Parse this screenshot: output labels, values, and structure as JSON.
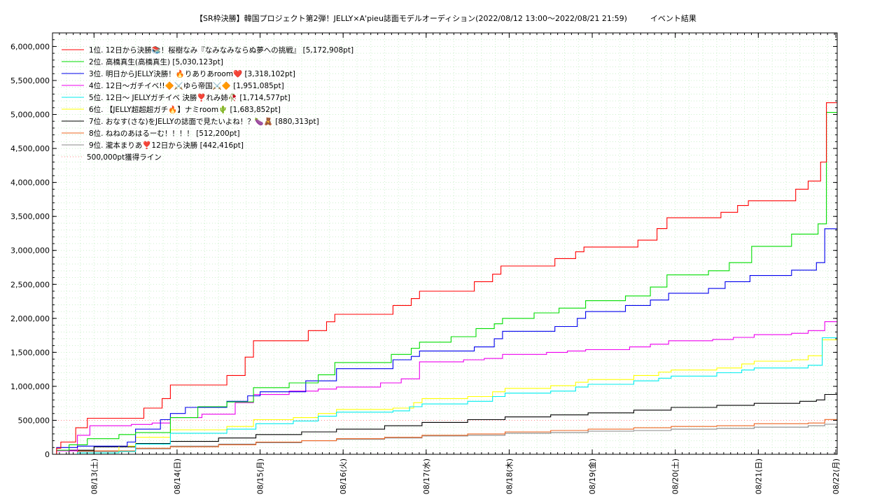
{
  "chart_data": {
    "type": "line",
    "title": "【SR枠決勝】韓国プロジェクト第2弾！JELLY×A'pieu誌面モデルオーディション(2022/08/12 13:00～2022/08/21 21:59)　　　イベント結果",
    "xlabel": "",
    "ylabel": "",
    "xlim": [
      0,
      9.45
    ],
    "ylim": [
      0,
      6200000
    ],
    "grid": true,
    "legend_position": "top-left",
    "x_ticks": [
      {
        "x": 0.5,
        "label": "08/13(土)"
      },
      {
        "x": 1.5,
        "label": "08/14(日)"
      },
      {
        "x": 2.5,
        "label": "08/15(月)"
      },
      {
        "x": 3.5,
        "label": "08/16(火)"
      },
      {
        "x": 4.5,
        "label": "08/17(水)"
      },
      {
        "x": 5.5,
        "label": "08/18(木)"
      },
      {
        "x": 6.5,
        "label": "08/19(金)"
      },
      {
        "x": 7.5,
        "label": "08/20(土)"
      },
      {
        "x": 8.5,
        "label": "08/21(日)"
      },
      {
        "x": 9.5,
        "label": "08/22(月)"
      }
    ],
    "y_ticks": [
      0,
      500000,
      1000000,
      1500000,
      2000000,
      2500000,
      3000000,
      3500000,
      4000000,
      4500000,
      5000000,
      5500000,
      6000000
    ],
    "y_tick_labels": [
      "0",
      "500,000",
      "1,000,000",
      "1,500,000",
      "2,000,000",
      "2,500,000",
      "3,000,000",
      "3,500,000",
      "4,000,000",
      "4,500,000",
      "5,000,000",
      "5,500,000",
      "6,000,000"
    ],
    "series": [
      {
        "name": "1位. 12日から決勝📚！桜樹なみ『なみなみならぬ夢への挑戦』 [5,172,908pt]",
        "color": "#ff0000",
        "points": [
          [
            0,
            0
          ],
          [
            0.05,
            90000
          ],
          [
            0.1,
            180000
          ],
          [
            0.28,
            390000
          ],
          [
            0.42,
            530000
          ],
          [
            1.1,
            680000
          ],
          [
            1.32,
            820000
          ],
          [
            1.42,
            1020000
          ],
          [
            2.1,
            1160000
          ],
          [
            2.32,
            1430000
          ],
          [
            2.42,
            1670000
          ],
          [
            3.08,
            1820000
          ],
          [
            3.3,
            1950000
          ],
          [
            3.4,
            2060000
          ],
          [
            4.1,
            2190000
          ],
          [
            4.32,
            2290000
          ],
          [
            4.42,
            2400000
          ],
          [
            5.08,
            2540000
          ],
          [
            5.3,
            2650000
          ],
          [
            5.4,
            2770000
          ],
          [
            6.05,
            2880000
          ],
          [
            6.3,
            2980000
          ],
          [
            6.4,
            3050000
          ],
          [
            7.05,
            3150000
          ],
          [
            7.28,
            3320000
          ],
          [
            7.4,
            3480000
          ],
          [
            8.05,
            3560000
          ],
          [
            8.25,
            3660000
          ],
          [
            8.38,
            3730000
          ],
          [
            8.95,
            3900000
          ],
          [
            9.1,
            4020000
          ],
          [
            9.25,
            4300000
          ],
          [
            9.32,
            5172908
          ],
          [
            9.45,
            5172908
          ]
        ]
      },
      {
        "name": "2位. 高橋真生(高橋真生) [5,030,123pt]",
        "color": "#00dd00",
        "points": [
          [
            0,
            0
          ],
          [
            0.05,
            60000
          ],
          [
            0.2,
            140000
          ],
          [
            0.42,
            230000
          ],
          [
            0.8,
            290000
          ],
          [
            1.0,
            320000
          ],
          [
            1.42,
            540000
          ],
          [
            1.75,
            700000
          ],
          [
            2.1,
            770000
          ],
          [
            2.42,
            980000
          ],
          [
            2.85,
            1050000
          ],
          [
            3.2,
            1170000
          ],
          [
            3.4,
            1350000
          ],
          [
            4.08,
            1470000
          ],
          [
            4.32,
            1560000
          ],
          [
            4.42,
            1650000
          ],
          [
            4.8,
            1730000
          ],
          [
            5.1,
            1850000
          ],
          [
            5.32,
            1920000
          ],
          [
            5.42,
            2000000
          ],
          [
            5.8,
            2080000
          ],
          [
            6.1,
            2150000
          ],
          [
            6.42,
            2260000
          ],
          [
            6.9,
            2330000
          ],
          [
            7.2,
            2460000
          ],
          [
            7.4,
            2640000
          ],
          [
            7.9,
            2700000
          ],
          [
            8.15,
            2820000
          ],
          [
            8.42,
            3060000
          ],
          [
            8.9,
            3240000
          ],
          [
            9.22,
            3390000
          ],
          [
            9.32,
            5030123
          ],
          [
            9.45,
            5030123
          ]
        ]
      },
      {
        "name": "3位. 明日からJELLY決勝！🔥りありあroom❤️ [3,318,102pt]",
        "color": "#0000ee",
        "points": [
          [
            0,
            0
          ],
          [
            0.05,
            100000
          ],
          [
            0.3,
            120000
          ],
          [
            0.6,
            120000
          ],
          [
            0.9,
            180000
          ],
          [
            1.0,
            370000
          ],
          [
            1.3,
            510000
          ],
          [
            1.42,
            600000
          ],
          [
            1.6,
            690000
          ],
          [
            2.1,
            780000
          ],
          [
            2.35,
            860000
          ],
          [
            2.5,
            920000
          ],
          [
            3.05,
            1080000
          ],
          [
            3.42,
            1260000
          ],
          [
            4.1,
            1390000
          ],
          [
            4.32,
            1440000
          ],
          [
            4.42,
            1520000
          ],
          [
            5.08,
            1580000
          ],
          [
            5.32,
            1700000
          ],
          [
            5.42,
            1810000
          ],
          [
            6.05,
            1880000
          ],
          [
            6.32,
            2000000
          ],
          [
            6.42,
            2100000
          ],
          [
            6.9,
            2190000
          ],
          [
            7.2,
            2270000
          ],
          [
            7.42,
            2370000
          ],
          [
            7.9,
            2440000
          ],
          [
            8.1,
            2540000
          ],
          [
            8.4,
            2630000
          ],
          [
            8.9,
            2710000
          ],
          [
            9.2,
            2820000
          ],
          [
            9.3,
            3318102
          ],
          [
            9.45,
            3318102
          ]
        ]
      },
      {
        "name": "4位. 12日～ガチイベ!!🔶⚔️ゆら帝国⚔️🔶 [1,951,085pt]",
        "color": "#ee00ee",
        "points": [
          [
            0,
            0
          ],
          [
            0.05,
            50000
          ],
          [
            0.3,
            280000
          ],
          [
            0.45,
            420000
          ],
          [
            0.95,
            440000
          ],
          [
            1.2,
            460000
          ],
          [
            1.42,
            540000
          ],
          [
            1.8,
            590000
          ],
          [
            2.2,
            760000
          ],
          [
            2.42,
            880000
          ],
          [
            2.85,
            930000
          ],
          [
            3.2,
            960000
          ],
          [
            3.42,
            990000
          ],
          [
            3.95,
            1050000
          ],
          [
            4.2,
            1110000
          ],
          [
            4.42,
            1360000
          ],
          [
            4.95,
            1390000
          ],
          [
            5.2,
            1410000
          ],
          [
            5.42,
            1470000
          ],
          [
            5.95,
            1500000
          ],
          [
            6.2,
            1520000
          ],
          [
            6.42,
            1540000
          ],
          [
            6.95,
            1580000
          ],
          [
            7.2,
            1620000
          ],
          [
            7.42,
            1670000
          ],
          [
            7.95,
            1690000
          ],
          [
            8.2,
            1720000
          ],
          [
            8.45,
            1760000
          ],
          [
            8.9,
            1780000
          ],
          [
            9.1,
            1820000
          ],
          [
            9.3,
            1951085
          ],
          [
            9.45,
            1951085
          ]
        ]
      },
      {
        "name": "5位. 12日～ JELLYガチイベ 決勝❣️れみ姉🥀 [1,714,577pt]",
        "color": "#00eeee",
        "points": [
          [
            0,
            0
          ],
          [
            0.3,
            20000
          ],
          [
            0.8,
            40000
          ],
          [
            1.0,
            150000
          ],
          [
            1.42,
            310000
          ],
          [
            2.1,
            370000
          ],
          [
            2.45,
            450000
          ],
          [
            2.9,
            490000
          ],
          [
            3.2,
            560000
          ],
          [
            3.42,
            620000
          ],
          [
            4.1,
            640000
          ],
          [
            4.3,
            700000
          ],
          [
            4.45,
            740000
          ],
          [
            5.0,
            780000
          ],
          [
            5.3,
            850000
          ],
          [
            5.45,
            900000
          ],
          [
            6.0,
            930000
          ],
          [
            6.3,
            990000
          ],
          [
            6.45,
            1030000
          ],
          [
            7.0,
            1080000
          ],
          [
            7.3,
            1120000
          ],
          [
            7.45,
            1150000
          ],
          [
            8.0,
            1200000
          ],
          [
            8.3,
            1240000
          ],
          [
            8.45,
            1270000
          ],
          [
            9.1,
            1310000
          ],
          [
            9.27,
            1714577
          ],
          [
            9.45,
            1714577
          ]
        ]
      },
      {
        "name": "6位. 【JELLY超超超ガチ🔥】ナミroom🌵 [1,683,852pt]",
        "color": "#ffff00",
        "points": [
          [
            0,
            0
          ],
          [
            0.3,
            20000
          ],
          [
            0.8,
            120000
          ],
          [
            1.0,
            250000
          ],
          [
            1.42,
            360000
          ],
          [
            2.1,
            410000
          ],
          [
            2.42,
            510000
          ],
          [
            2.9,
            540000
          ],
          [
            3.2,
            600000
          ],
          [
            3.42,
            660000
          ],
          [
            4.1,
            680000
          ],
          [
            4.35,
            760000
          ],
          [
            4.45,
            820000
          ],
          [
            5.0,
            850000
          ],
          [
            5.3,
            920000
          ],
          [
            5.45,
            970000
          ],
          [
            6.0,
            1010000
          ],
          [
            6.3,
            1060000
          ],
          [
            6.45,
            1100000
          ],
          [
            7.0,
            1160000
          ],
          [
            7.3,
            1210000
          ],
          [
            7.45,
            1240000
          ],
          [
            8.0,
            1270000
          ],
          [
            8.3,
            1330000
          ],
          [
            8.45,
            1370000
          ],
          [
            8.9,
            1390000
          ],
          [
            9.1,
            1450000
          ],
          [
            9.27,
            1683852
          ],
          [
            9.45,
            1683852
          ]
        ]
      },
      {
        "name": "7位. おなす(さな)をJELLYの誌面で見たいよね！？🍆🧸 [880,313pt]",
        "color": "#000000",
        "points": [
          [
            0,
            0
          ],
          [
            0.2,
            60000
          ],
          [
            0.5,
            110000
          ],
          [
            1.0,
            160000
          ],
          [
            1.42,
            190000
          ],
          [
            2.0,
            240000
          ],
          [
            2.45,
            290000
          ],
          [
            3.0,
            330000
          ],
          [
            3.42,
            370000
          ],
          [
            4.0,
            420000
          ],
          [
            4.45,
            470000
          ],
          [
            5.0,
            510000
          ],
          [
            5.45,
            550000
          ],
          [
            6.0,
            580000
          ],
          [
            6.45,
            610000
          ],
          [
            7.0,
            650000
          ],
          [
            7.45,
            690000
          ],
          [
            8.0,
            720000
          ],
          [
            8.45,
            750000
          ],
          [
            9.0,
            780000
          ],
          [
            9.2,
            800000
          ],
          [
            9.3,
            880313
          ],
          [
            9.45,
            880313
          ]
        ]
      },
      {
        "name": "8位. ねねのあはるーむ！！！！ [512,200pt]",
        "color": "#ee6622",
        "points": [
          [
            0,
            0
          ],
          [
            0.3,
            50000
          ],
          [
            1.0,
            90000
          ],
          [
            1.42,
            110000
          ],
          [
            2.0,
            140000
          ],
          [
            2.45,
            180000
          ],
          [
            3.0,
            200000
          ],
          [
            3.42,
            230000
          ],
          [
            4.0,
            250000
          ],
          [
            4.45,
            280000
          ],
          [
            5.0,
            300000
          ],
          [
            5.45,
            330000
          ],
          [
            6.0,
            350000
          ],
          [
            6.45,
            370000
          ],
          [
            7.0,
            390000
          ],
          [
            7.45,
            410000
          ],
          [
            8.0,
            420000
          ],
          [
            8.45,
            450000
          ],
          [
            9.1,
            460000
          ],
          [
            9.3,
            512200
          ],
          [
            9.45,
            512200
          ]
        ]
      },
      {
        "name": "9位. 瀧本まりあ❣️12日から決勝 [442,416pt]",
        "color": "#888888",
        "points": [
          [
            0,
            0
          ],
          [
            0.3,
            40000
          ],
          [
            1.0,
            80000
          ],
          [
            1.42,
            120000
          ],
          [
            2.0,
            150000
          ],
          [
            2.45,
            170000
          ],
          [
            3.0,
            200000
          ],
          [
            3.42,
            220000
          ],
          [
            4.0,
            240000
          ],
          [
            4.45,
            270000
          ],
          [
            5.0,
            280000
          ],
          [
            5.45,
            310000
          ],
          [
            6.0,
            320000
          ],
          [
            6.45,
            340000
          ],
          [
            7.0,
            350000
          ],
          [
            7.45,
            370000
          ],
          [
            8.0,
            380000
          ],
          [
            8.45,
            400000
          ],
          [
            9.1,
            420000
          ],
          [
            9.3,
            442416
          ],
          [
            9.45,
            442416
          ]
        ]
      }
    ],
    "reference_line": {
      "name": "500,000pt獲得ライン",
      "value": 500000,
      "color": "#ff8888"
    }
  }
}
